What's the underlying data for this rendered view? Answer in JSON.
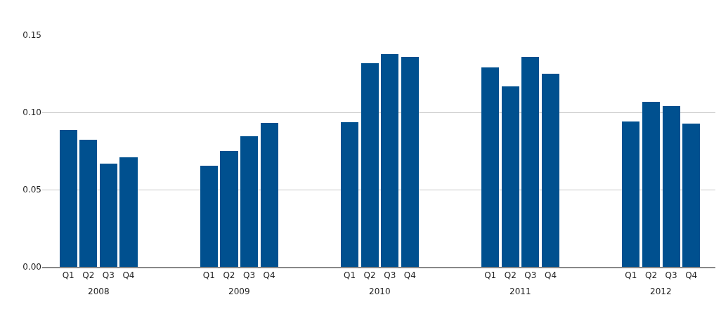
{
  "chart_data": {
    "type": "bar",
    "categories": [
      "Q1",
      "Q2",
      "Q3",
      "Q4",
      null,
      null,
      null,
      "Q1",
      "Q2",
      "Q3",
      "Q4",
      null,
      null,
      null,
      "Q1",
      "Q2",
      "Q3",
      "Q4",
      null,
      null,
      null,
      "Q1",
      "Q2",
      "Q3",
      "Q4",
      null,
      null,
      null,
      "Q1",
      "Q2",
      "Q3",
      "Q4"
    ],
    "values": [
      0.0887,
      0.0823,
      0.0667,
      0.0708,
      null,
      null,
      null,
      0.0653,
      0.0749,
      0.0846,
      0.0933,
      null,
      null,
      null,
      0.0937,
      0.132,
      0.1376,
      0.1357,
      null,
      null,
      null,
      0.129,
      0.117,
      0.136,
      0.125,
      null,
      null,
      null,
      0.094,
      0.1068,
      0.104,
      0.0926
    ],
    "color": "#00508f",
    "ylim": [
      0,
      0.15
    ],
    "yticks": [
      {
        "value": 0,
        "label": "0.00"
      },
      {
        "value": 0.05,
        "label": "0.05"
      },
      {
        "value": 0.1,
        "label": "0.10"
      },
      {
        "value": 0.15,
        "label": "0.15"
      }
    ],
    "grid": "y",
    "annotations": [
      "2008",
      "2009",
      "2010",
      "2011",
      "2012"
    ]
  }
}
